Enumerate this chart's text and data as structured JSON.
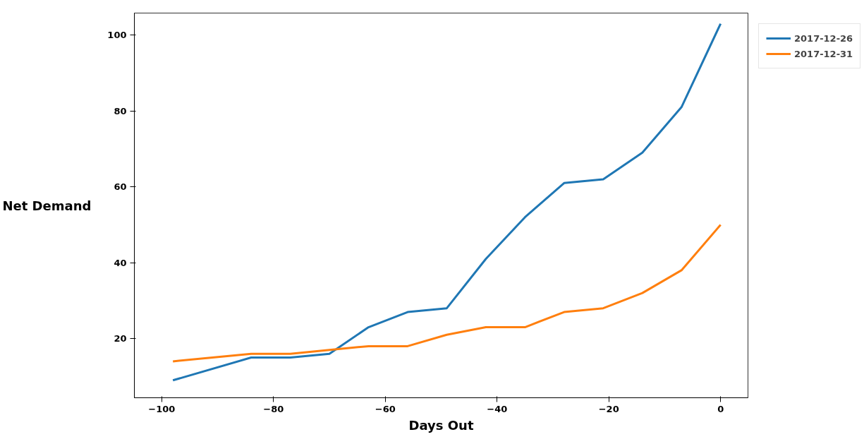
{
  "chart_data": {
    "type": "line",
    "xlabel": "Days Out",
    "ylabel": "Net Demand",
    "x": [
      -98,
      -84,
      -77,
      -70,
      -63,
      -56,
      -49,
      -42,
      -35,
      -28,
      -21,
      -14,
      -7,
      0
    ],
    "series": [
      {
        "name": "2017-12-26",
        "color": "#1f77b4",
        "values": [
          9,
          15,
          15,
          16,
          23,
          27,
          28,
          41,
          52,
          61,
          62,
          69,
          81,
          103
        ]
      },
      {
        "name": "2017-12-31",
        "color": "#ff7f0e",
        "values": [
          14,
          16,
          16,
          17,
          18,
          18,
          21,
          23,
          23,
          27,
          28,
          32,
          38,
          50
        ]
      }
    ],
    "xlim": [
      -104.9,
      4.9
    ],
    "ylim": [
      4.4,
      105.8
    ],
    "xticks": [
      {
        "value": -100,
        "label": "−100"
      },
      {
        "value": -80,
        "label": "−80"
      },
      {
        "value": -60,
        "label": "−60"
      },
      {
        "value": -40,
        "label": "−40"
      },
      {
        "value": -20,
        "label": "−20"
      },
      0
    ],
    "yticks": [
      20,
      40,
      60,
      80,
      100
    ],
    "grid": false,
    "legend": "top right",
    "marker": "none",
    "line_style": "solid"
  }
}
